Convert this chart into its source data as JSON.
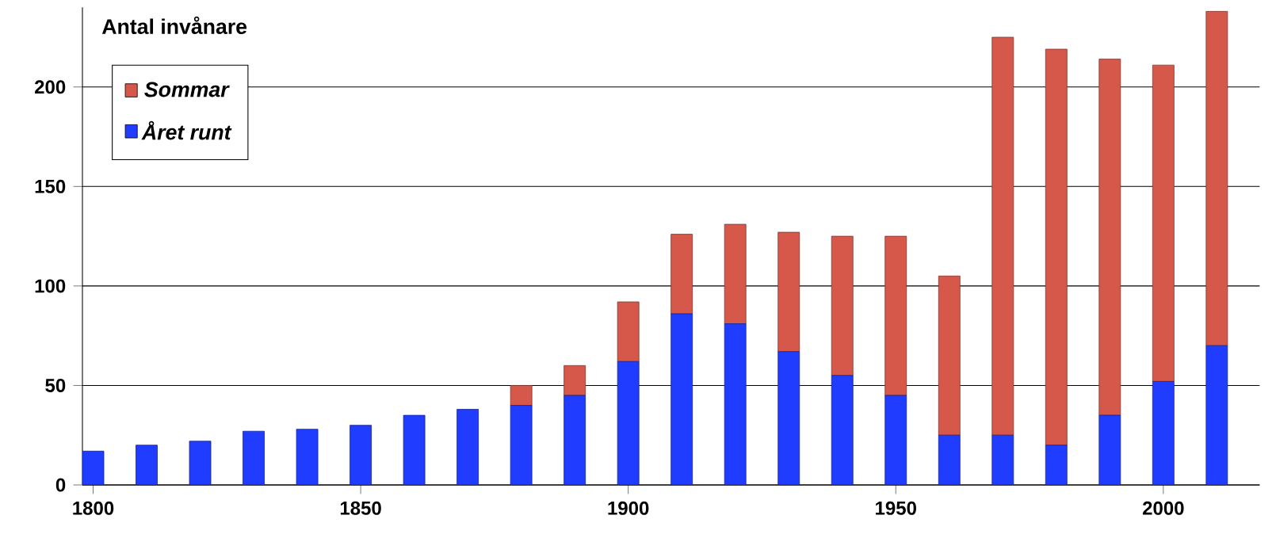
{
  "chart_data": {
    "type": "bar",
    "stacked": true,
    "title": "Antal invånare",
    "x": [
      1800,
      1810,
      1820,
      1830,
      1840,
      1850,
      1860,
      1870,
      1880,
      1890,
      1900,
      1910,
      1920,
      1930,
      1940,
      1950,
      1960,
      1970,
      1980,
      1990,
      2000,
      2010
    ],
    "series": [
      {
        "name": "Året runt",
        "color": "#1f3cff",
        "values": [
          17,
          20,
          22,
          27,
          28,
          30,
          35,
          38,
          40,
          45,
          62,
          86,
          81,
          67,
          55,
          45,
          25,
          25,
          20,
          35,
          52,
          70
        ]
      },
      {
        "name": "Sommar",
        "color": "#d6584a",
        "values": [
          0,
          0,
          0,
          0,
          0,
          0,
          0,
          0,
          10,
          15,
          30,
          40,
          50,
          60,
          70,
          80,
          80,
          200,
          199,
          179,
          159,
          168
        ]
      }
    ],
    "xlim": [
      1798,
      2018
    ],
    "ylim": [
      0,
      240
    ],
    "xticks": [
      1800,
      1850,
      1900,
      1950,
      2000
    ],
    "yticks": [
      0,
      50,
      100,
      150,
      200
    ],
    "grid": "y",
    "legend": "top left"
  }
}
